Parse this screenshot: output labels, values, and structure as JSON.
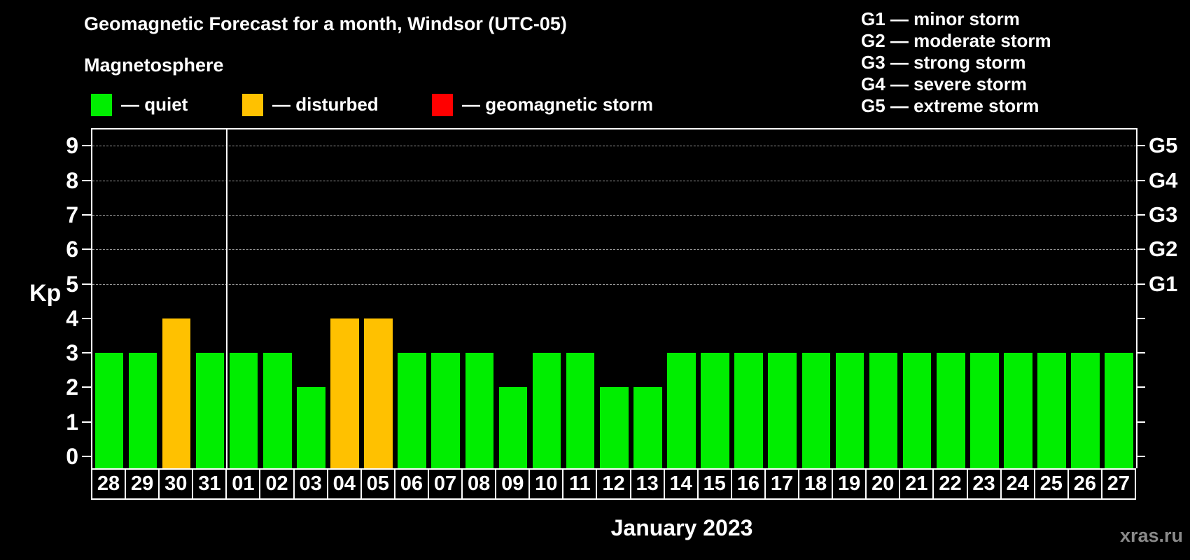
{
  "title": "Geomagnetic Forecast for a month, Windsor (UTC-05)",
  "subtitle": "Magnetosphere",
  "legend": {
    "items": [
      {
        "name": "quiet",
        "label": "— quiet",
        "color": "#00ee00"
      },
      {
        "name": "disturbed",
        "label": "— disturbed",
        "color": "#ffc100"
      },
      {
        "name": "storm",
        "label": "— geomagnetic storm",
        "color": "#ff0000"
      }
    ]
  },
  "storm_scale_legend": [
    "G1 — minor storm",
    "G2 — moderate storm",
    "G3 — strong storm",
    "G4 — severe storm",
    "G5 — extreme storm"
  ],
  "watermark": "xras.ru",
  "chart_data": {
    "type": "bar",
    "title": "Geomagnetic Forecast for a month, Windsor (UTC-05)",
    "subtitle": "Magnetosphere",
    "ylabel": "Kp",
    "xlabel": "January 2023",
    "ylim": [
      0,
      9.5
    ],
    "yticks": [
      0,
      1,
      2,
      3,
      4,
      5,
      6,
      7,
      8,
      9
    ],
    "grid_kp_levels": [
      5,
      6,
      7,
      8,
      9
    ],
    "right_axis_labels": [
      {
        "label": "G1",
        "kp": 5
      },
      {
        "label": "G2",
        "kp": 6
      },
      {
        "label": "G3",
        "kp": 7
      },
      {
        "label": "G4",
        "kp": 8
      },
      {
        "label": "G5",
        "kp": 9
      }
    ],
    "categories": [
      "28",
      "29",
      "30",
      "31",
      "01",
      "02",
      "03",
      "04",
      "05",
      "06",
      "07",
      "08",
      "09",
      "10",
      "11",
      "12",
      "13",
      "14",
      "15",
      "16",
      "17",
      "18",
      "19",
      "20",
      "21",
      "22",
      "23",
      "24",
      "25",
      "26",
      "27"
    ],
    "values": [
      3,
      3,
      4,
      3,
      3,
      3,
      2,
      4,
      4,
      3,
      3,
      3,
      2,
      3,
      3,
      2,
      2,
      3,
      3,
      3,
      3,
      3,
      3,
      3,
      3,
      3,
      3,
      3,
      3,
      3,
      3
    ],
    "statuses": [
      "quiet",
      "quiet",
      "disturbed",
      "quiet",
      "quiet",
      "quiet",
      "quiet",
      "disturbed",
      "disturbed",
      "quiet",
      "quiet",
      "quiet",
      "quiet",
      "quiet",
      "quiet",
      "quiet",
      "quiet",
      "quiet",
      "quiet",
      "quiet",
      "quiet",
      "quiet",
      "quiet",
      "quiet",
      "quiet",
      "quiet",
      "quiet",
      "quiet",
      "quiet",
      "quiet",
      "quiet"
    ],
    "month_separator_after_index": 3,
    "colors": {
      "quiet": "#00ee00",
      "disturbed": "#ffc100",
      "storm": "#ff0000"
    },
    "legend_position": "top-left",
    "grid": "dashed horizontal at G-storm levels only"
  }
}
